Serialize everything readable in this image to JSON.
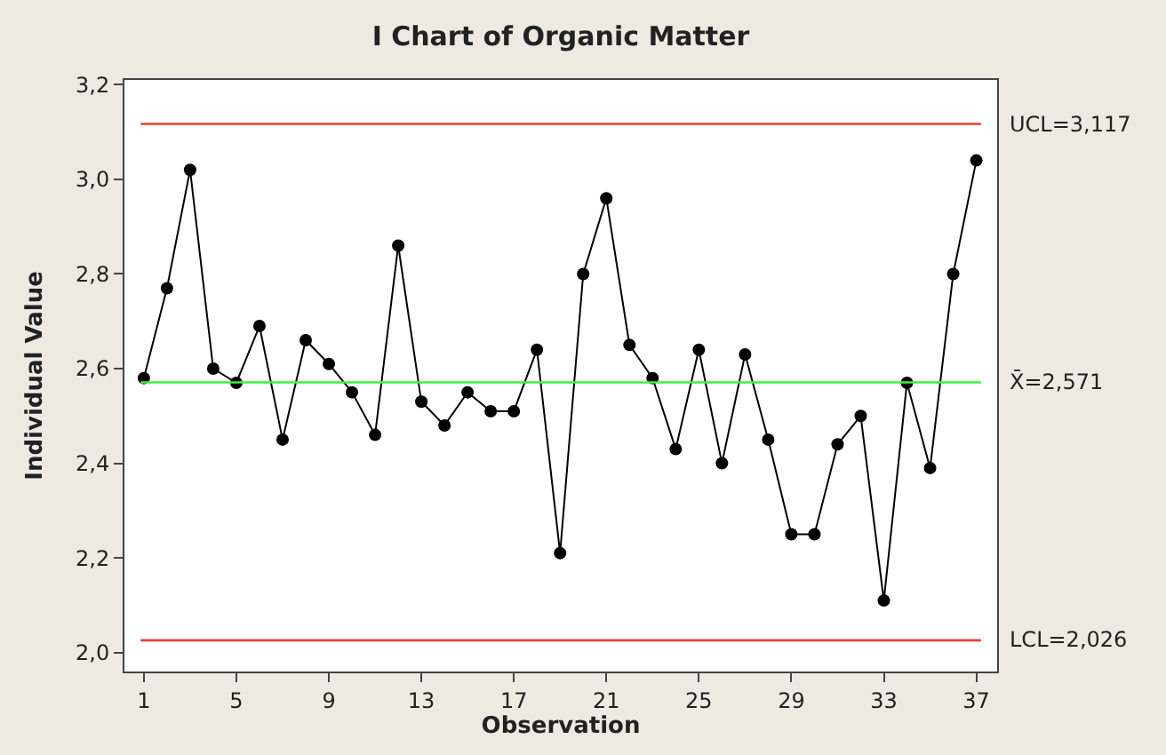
{
  "chart_data": {
    "type": "line",
    "title": "I Chart of Organic Matter",
    "xlabel": "Observation",
    "ylabel": "Individual Value",
    "x": [
      1,
      2,
      3,
      4,
      5,
      6,
      7,
      8,
      9,
      10,
      11,
      12,
      13,
      14,
      15,
      16,
      17,
      18,
      19,
      20,
      21,
      22,
      23,
      24,
      25,
      26,
      27,
      28,
      29,
      30,
      31,
      32,
      33,
      34,
      35,
      36,
      37
    ],
    "series": [
      {
        "color": "#000000",
        "values": [
          2.58,
          2.77,
          3.02,
          2.6,
          2.57,
          2.69,
          2.45,
          2.66,
          2.61,
          2.55,
          2.46,
          2.86,
          2.53,
          2.48,
          2.55,
          2.51,
          2.51,
          2.64,
          2.21,
          2.8,
          2.96,
          2.65,
          2.58,
          2.43,
          2.64,
          2.4,
          2.63,
          2.45,
          2.25,
          2.25,
          2.44,
          2.5,
          2.11,
          2.57,
          2.39,
          2.8,
          3.04
        ]
      }
    ],
    "xlim": [
      0.16,
      37.9
    ],
    "xticks": [
      1,
      5,
      9,
      13,
      17,
      21,
      25,
      29,
      33,
      37
    ],
    "ylim": [
      1.96,
      3.21
    ],
    "yticks": [
      {
        "value": 2.0,
        "label": "2,0"
      },
      {
        "value": 2.2,
        "label": "2,2"
      },
      {
        "value": 2.4,
        "label": "2,4"
      },
      {
        "value": 2.6,
        "label": "2,6"
      },
      {
        "value": 2.8,
        "label": "2,8"
      },
      {
        "value": 3.0,
        "label": "3,0"
      },
      {
        "value": 3.2,
        "label": "3,2"
      }
    ],
    "ref_lines": [
      {
        "axis": "y",
        "value": 3.117,
        "label": "UCL=3,117",
        "color": "#f03c3c"
      },
      {
        "axis": "y",
        "value": 2.571,
        "label": "X̄=2,571",
        "color": "#44ee44"
      },
      {
        "axis": "y",
        "value": 2.026,
        "label": "LCL=2,026",
        "color": "#f03c3c"
      }
    ],
    "marker": "circle",
    "line_style": "solid"
  }
}
